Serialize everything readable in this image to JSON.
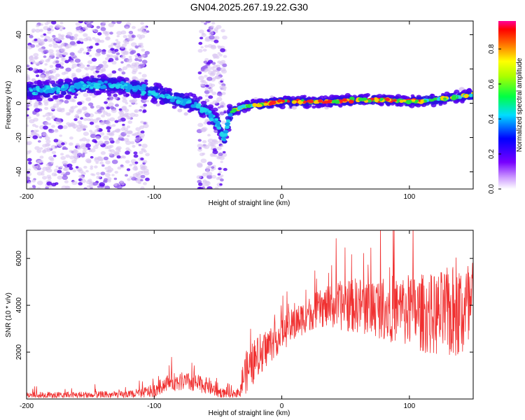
{
  "figure_title": "GN04.2025.267.19.22.G30",
  "colors": {
    "snr_line": "#f03030",
    "top_plot_background": "#ffffff",
    "scatter_faint": "#d9c4f2",
    "scatter_strong": "#5500ee"
  },
  "chart_data": [
    {
      "type": "heatmap",
      "name": "spectrogram",
      "xlabel": "Height of straight line (km)",
      "ylabel": "Frequency (Hz)",
      "xlim": [
        -200,
        150
      ],
      "ylim": [
        -50,
        48
      ],
      "xticks": [
        -200,
        -100,
        0,
        100
      ],
      "yticks": [
        -40,
        -20,
        0,
        20,
        40
      ],
      "colorbar": {
        "label": "Normalized spectral amplitude",
        "range": [
          0,
          0.96
        ],
        "ticks": [
          0.0,
          0.2,
          0.4,
          0.6,
          0.8
        ],
        "tick_labels": [
          "0.0",
          "0.2",
          "0.4",
          "0.6",
          "0.8"
        ],
        "colormap": "rainbow (white-violet-blue-cyan-green-yellow-red-magenta)"
      },
      "ridge_profile": {
        "height_km": [
          -200,
          -180,
          -160,
          -140,
          -120,
          -100,
          -90,
          -80,
          -70,
          -60,
          -50,
          -45,
          -40,
          -30,
          -20,
          -10,
          0,
          20,
          40,
          60,
          80,
          100,
          120,
          140,
          150
        ],
        "frequency_hz": [
          7,
          8,
          10,
          11,
          10,
          6,
          4,
          2,
          0,
          -4,
          -12,
          -20,
          -5,
          -2,
          -1,
          0,
          1,
          1,
          1,
          2,
          2,
          1,
          2,
          4,
          5
        ]
      },
      "noise_regions": [
        {
          "height_km": [
            -200,
            -105
          ],
          "frequency_hz": [
            -50,
            48
          ]
        },
        {
          "height_km": [
            -65,
            -44
          ],
          "frequency_hz": [
            -50,
            48
          ]
        }
      ]
    },
    {
      "type": "line",
      "name": "snr",
      "xlabel": "Height of straight line (km)",
      "ylabel": "SNR (10 * v/v)",
      "xlim": [
        -200,
        150
      ],
      "ylim": [
        0,
        7200
      ],
      "xticks": [
        -200,
        -100,
        0,
        100
      ],
      "yticks": [
        2000,
        4000,
        6000
      ],
      "envelope": {
        "height_km": [
          -200,
          -120,
          -100,
          -90,
          -80,
          -70,
          -60,
          -50,
          -40,
          -33,
          -30,
          -20,
          -10,
          0,
          10,
          20,
          30,
          40,
          50,
          60,
          80,
          100,
          120,
          140,
          150
        ],
        "snr_mean": [
          150,
          180,
          350,
          700,
          750,
          700,
          600,
          300,
          200,
          280,
          1000,
          1700,
          2300,
          2800,
          3200,
          3600,
          3850,
          3950,
          4000,
          4000,
          3900,
          3750,
          3600,
          3700,
          3800
        ],
        "snr_spread": [
          180,
          200,
          350,
          450,
          500,
          500,
          450,
          300,
          180,
          250,
          1100,
          1200,
          1000,
          900,
          900,
          900,
          1000,
          1200,
          1400,
          1500,
          1700,
          2000,
          2200,
          2700,
          2800
        ]
      }
    }
  ]
}
